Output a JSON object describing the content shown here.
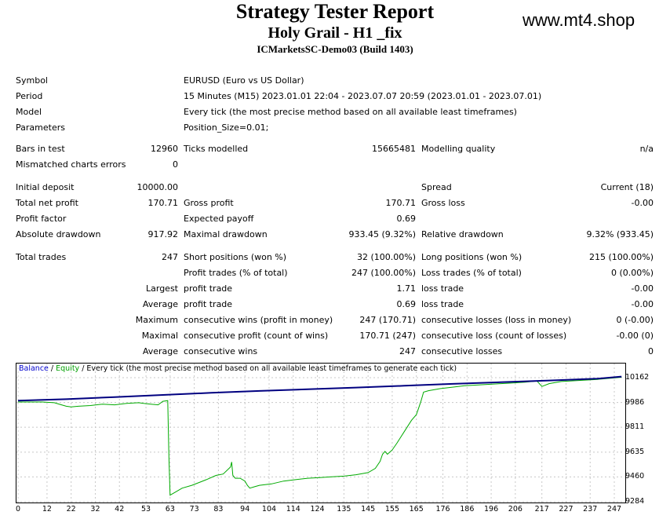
{
  "header": {
    "title": "Strategy Tester Report",
    "subtitle": "Holy Grail - H1 _fix",
    "server": "ICMarketsSC-Demo03 (Build 1403)",
    "watermark": "www.mt4.shop"
  },
  "info": {
    "symbol_label": "Symbol",
    "symbol": "EURUSD (Euro vs US Dollar)",
    "period_label": "Period",
    "period": "15 Minutes (M15) 2023.01.01 22:04 - 2023.07.07 20:59 (2023.01.01 - 2023.07.01)",
    "model_label": "Model",
    "model": "Every tick (the most precise method based on all available least timeframes)",
    "parameters_label": "Parameters",
    "parameters": "Position_Size=0.01;"
  },
  "stats": {
    "bars_label": "Bars in test",
    "bars": "12960",
    "ticks_label": "Ticks modelled",
    "ticks": "15665481",
    "quality_label": "Modelling quality",
    "quality": "n/a",
    "mismatch_label": "Mismatched charts errors",
    "mismatch": "0",
    "deposit_label": "Initial deposit",
    "deposit": "10000.00",
    "spread_label": "Spread",
    "spread": "Current (18)",
    "net_profit_label": "Total net profit",
    "net_profit": "170.71",
    "gross_profit_label": "Gross profit",
    "gross_profit": "170.71",
    "gross_loss_label": "Gross loss",
    "gross_loss": "-0.00",
    "profit_factor_label": "Profit factor",
    "profit_factor": "",
    "expected_payoff_label": "Expected payoff",
    "expected_payoff": "0.69",
    "abs_dd_label": "Absolute drawdown",
    "abs_dd": "917.92",
    "max_dd_label": "Maximal drawdown",
    "max_dd": "933.45 (9.32%)",
    "rel_dd_label": "Relative drawdown",
    "rel_dd": "9.32% (933.45)",
    "total_trades_label": "Total trades",
    "total_trades": "247",
    "short_label": "Short positions (won %)",
    "short": "32 (100.00%)",
    "long_label": "Long positions (won %)",
    "long": "215 (100.00%)",
    "profit_trades_label": "Profit trades (% of total)",
    "profit_trades": "247 (100.00%)",
    "loss_trades_label": "Loss trades (% of total)",
    "loss_trades": "0 (0.00%)",
    "largest_label": "Largest",
    "largest_profit_label": "profit trade",
    "largest_profit": "1.71",
    "largest_loss_label": "loss trade",
    "largest_loss": "-0.00",
    "average_label": "Average",
    "average_profit_label": "profit trade",
    "average_profit": "0.69",
    "average_loss_label": "loss trade",
    "average_loss": "-0.00",
    "maximum_label": "Maximum",
    "max_cons_wins_label": "consecutive wins (profit in money)",
    "max_cons_wins": "247 (170.71)",
    "max_cons_losses_label": "consecutive losses (loss in money)",
    "max_cons_losses": "0 (-0.00)",
    "maximal_label": "Maximal",
    "maximal_cons_profit_label": "consecutive profit (count of wins)",
    "maximal_cons_profit": "170.71 (247)",
    "maximal_cons_loss_label": "consecutive loss (count of losses)",
    "maximal_cons_loss": "-0.00 (0)",
    "average2_label": "Average",
    "avg_cons_wins_label": "consecutive wins",
    "avg_cons_wins": "247",
    "avg_cons_losses_label": "consecutive losses",
    "avg_cons_losses": "0"
  },
  "chart_data": {
    "type": "line",
    "legend": {
      "balance": "Balance",
      "sep": " / ",
      "equity": "Equity",
      "rest": " / Every tick (the most precise method based on all available least timeframes to generate each tick)"
    },
    "x_ticks": [
      "0",
      "12",
      "22",
      "32",
      "42",
      "53",
      "63",
      "73",
      "83",
      "94",
      "104",
      "114",
      "124",
      "135",
      "145",
      "155",
      "165",
      "176",
      "186",
      "196",
      "206",
      "217",
      "227",
      "237",
      "247"
    ],
    "y_ticks": [
      "10162",
      "9986",
      "9811",
      "9635",
      "9460",
      "9284"
    ],
    "ylim": [
      9284,
      10162
    ],
    "xlim": [
      0,
      250
    ],
    "series": [
      {
        "name": "Balance",
        "color": "#000080",
        "x": [
          0,
          20,
          40,
          60,
          80,
          100,
          120,
          140,
          160,
          180,
          200,
          220,
          240,
          250
        ],
        "y": [
          10000,
          10010,
          10025,
          10040,
          10055,
          10068,
          10080,
          10092,
          10105,
          10118,
          10130,
          10142,
          10155,
          10170
        ]
      },
      {
        "name": "Equity",
        "color": "#00aa00",
        "x": [
          0,
          10,
          15,
          18,
          20,
          22,
          25,
          30,
          35,
          40,
          45,
          50,
          52,
          55,
          58,
          60,
          62,
          62.5,
          63,
          65,
          68,
          72,
          75,
          78,
          82,
          85,
          88,
          88.5,
          89,
          90,
          92,
          94,
          95,
          96,
          98,
          100,
          105,
          110,
          115,
          120,
          125,
          130,
          135,
          140,
          145,
          148,
          150,
          151,
          152,
          153,
          155,
          157,
          160,
          163,
          165,
          166,
          167,
          168,
          170,
          175,
          180,
          185,
          190,
          195,
          200,
          205,
          210,
          215,
          217,
          220,
          225,
          230,
          240,
          250
        ],
        "y": [
          9990,
          9990,
          9985,
          9970,
          9960,
          9955,
          9960,
          9965,
          9975,
          9970,
          9980,
          9985,
          9980,
          9975,
          9970,
          9995,
          10000,
          9600,
          9330,
          9350,
          9380,
          9400,
          9420,
          9440,
          9470,
          9480,
          9530,
          9565,
          9470,
          9450,
          9450,
          9430,
          9400,
          9380,
          9390,
          9400,
          9410,
          9430,
          9440,
          9450,
          9455,
          9460,
          9465,
          9475,
          9490,
          9520,
          9570,
          9620,
          9640,
          9620,
          9650,
          9700,
          9780,
          9860,
          9900,
          9950,
          10000,
          10060,
          10070,
          10085,
          10095,
          10105,
          10110,
          10115,
          10120,
          10125,
          10130,
          10138,
          10100,
          10120,
          10135,
          10140,
          10150,
          10165
        ]
      }
    ],
    "grid": true
  }
}
